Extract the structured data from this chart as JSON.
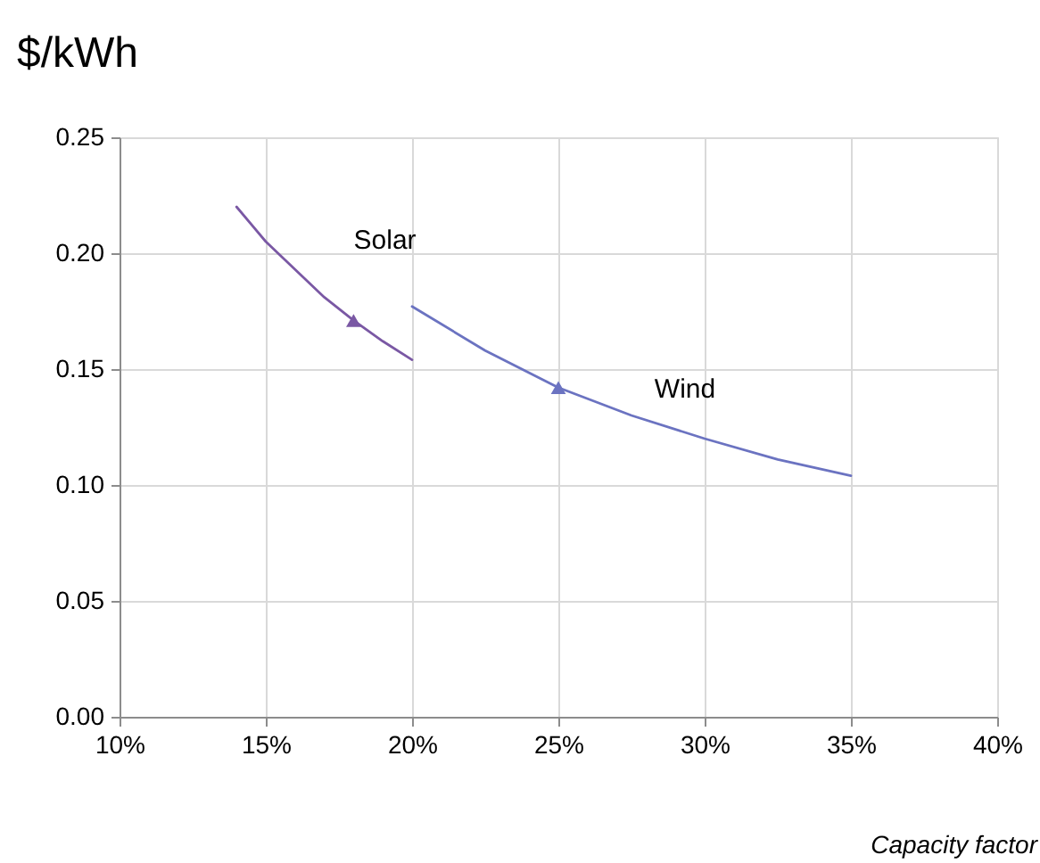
{
  "chart_data": {
    "type": "line",
    "xlabel": "Capacity factor",
    "ylabel": "$/kWh",
    "xlim": [
      10,
      40
    ],
    "xticks": [
      {
        "value": 10,
        "label": "10%"
      },
      {
        "value": 15,
        "label": "15%"
      },
      {
        "value": 20,
        "label": "20%"
      },
      {
        "value": 25,
        "label": "25%"
      },
      {
        "value": 30,
        "label": "30%"
      },
      {
        "value": 35,
        "label": "35%"
      },
      {
        "value": 40,
        "label": "40%"
      }
    ],
    "ylim": [
      0,
      0.25
    ],
    "yticks": [
      {
        "value": 0,
        "label": "0.00"
      },
      0.05,
      {
        "value": 0.1,
        "label": "0.10"
      },
      0.15,
      {
        "value": 0.2,
        "label": "0.20"
      },
      0.25
    ],
    "grid": true,
    "line_style": "solid",
    "series": [
      {
        "name": "Solar",
        "color": "#7a58a4",
        "x": [
          14,
          15,
          16,
          17,
          18,
          19,
          20
        ],
        "values": [
          0.22,
          0.205,
          0.193,
          0.181,
          0.171,
          0.162,
          0.154
        ]
      },
      {
        "name": "Wind",
        "color": "#6b73c1",
        "x": [
          20,
          22.5,
          25,
          27.5,
          30,
          32.5,
          35
        ],
        "values": [
          0.177,
          0.158,
          0.142,
          0.13,
          0.12,
          0.111,
          0.104
        ]
      },
      {
        "type": "scatter",
        "marker": "triangle",
        "color": "#7a58a4",
        "x": [
          18
        ],
        "values": [
          0.171
        ]
      },
      {
        "type": "scatter",
        "marker": "triangle",
        "color": "#6b73c1",
        "x": [
          25
        ],
        "values": [
          0.142
        ]
      }
    ]
  }
}
